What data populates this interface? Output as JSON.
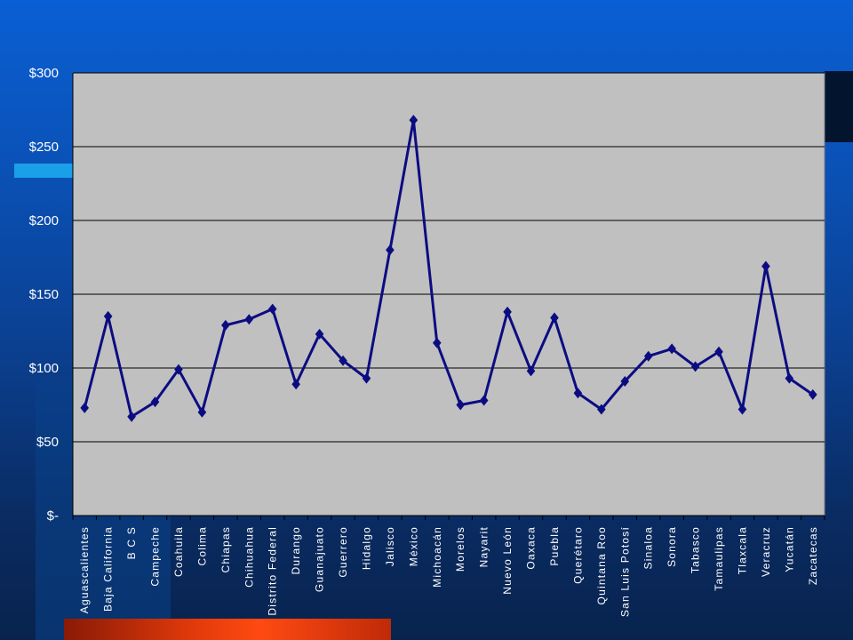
{
  "colors": {
    "plot_background": "#c0c0c0",
    "line": "#0c0c82",
    "gridline": "#000000",
    "page_top": "#0a5fd4",
    "page_bottom": "#08234e",
    "accent_red": "#ff4a12",
    "accent_cyan": "#1aa0e8"
  },
  "chart_data": {
    "type": "line",
    "title": "",
    "xlabel": "",
    "ylabel": "",
    "ylim": [
      0,
      300
    ],
    "y_ticks": [
      0,
      50,
      100,
      150,
      200,
      250,
      300
    ],
    "y_tick_labels": [
      "$-",
      "$50",
      "$100",
      "$150",
      "$200",
      "$250",
      "$300"
    ],
    "grid": true,
    "legend": "none",
    "marker": "diamond",
    "categories": [
      "Aguascalientes",
      "Baja California",
      "B C S",
      "Campeche",
      "Coahuila",
      "Colima",
      "Chiapas",
      "Chihuahua",
      "Distrito Federal",
      "Durango",
      "Guanajuato",
      "Guerrero",
      "Hidalgo",
      "Jalisco",
      "México",
      "Michoacán",
      "Morelos",
      "Nayarit",
      "Nuevo León",
      "Oaxaca",
      "Puebla",
      "Querétaro",
      "Quintana Roo",
      "San Luis Potosí",
      "Sinaloa",
      "Sonora",
      "Tabasco",
      "Tamaulipas",
      "Tlaxcala",
      "Veracruz",
      "Yucatán",
      "Zacatecas"
    ],
    "series": [
      {
        "values": [
          73,
          135,
          67,
          77,
          99,
          70,
          129,
          133,
          140,
          89,
          123,
          105,
          93,
          180,
          268,
          117,
          75,
          78,
          138,
          98,
          134,
          83,
          72,
          91,
          108,
          113,
          101,
          111,
          72,
          169,
          93,
          82
        ]
      }
    ]
  }
}
